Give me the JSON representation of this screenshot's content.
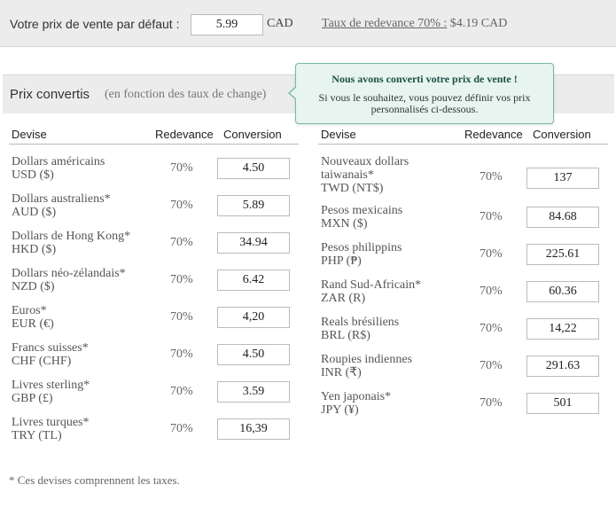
{
  "top_bar": {
    "label": "Votre prix de vente par défaut :",
    "price_value": "5.99",
    "currency": "CAD",
    "royalty_link": "Taux de redevance 70% :",
    "royalty_amount": " $4.19 CAD"
  },
  "panel": {
    "title": "Prix convertis",
    "subtitle": "(en fonction des taux de change)"
  },
  "tooltip": {
    "title": "Nous avons converti votre prix de vente !",
    "text": "Si vous le souhaitez, vous pouvez définir vos prix personnalisés ci-dessous."
  },
  "columns_header": {
    "currency": "Devise",
    "royalty": "Redevance",
    "conversion": "Conversion"
  },
  "left_rows": [
    {
      "name": "Dollars américains",
      "code": "USD ($)",
      "royalty": "70%",
      "value": "4.50"
    },
    {
      "name": "Dollars australiens*",
      "code": "AUD ($)",
      "royalty": "70%",
      "value": "5.89"
    },
    {
      "name": "Dollars de Hong Kong*",
      "code": "HKD ($)",
      "royalty": "70%",
      "value": "34.94"
    },
    {
      "name": "Dollars néo-zélandais*",
      "code": "NZD ($)",
      "royalty": "70%",
      "value": "6.42"
    },
    {
      "name": "Euros*",
      "code": "EUR (€)",
      "royalty": "70%",
      "value": "4,20"
    },
    {
      "name": "Francs suisses*",
      "code": "CHF (CHF)",
      "royalty": "70%",
      "value": "4.50"
    },
    {
      "name": "Livres sterling*",
      "code": "GBP (£)",
      "royalty": "70%",
      "value": "3.59"
    },
    {
      "name": "Livres turques*",
      "code": "TRY (TL)",
      "royalty": "70%",
      "value": "16,39"
    }
  ],
  "right_rows": [
    {
      "name": "Nouveaux dollars taiwanais*",
      "code": "TWD (NT$)",
      "royalty": "70%",
      "value": "137"
    },
    {
      "name": "Pesos mexicains",
      "code": "MXN ($)",
      "royalty": "70%",
      "value": "84.68"
    },
    {
      "name": "Pesos philippins",
      "code": "PHP (₱)",
      "royalty": "70%",
      "value": "225.61"
    },
    {
      "name": "Rand Sud-Africain*",
      "code": "ZAR (R)",
      "royalty": "70%",
      "value": "60.36"
    },
    {
      "name": "Reals brésiliens",
      "code": "BRL (R$)",
      "royalty": "70%",
      "value": "14,22"
    },
    {
      "name": "Roupies indiennes",
      "code": "INR (₹)",
      "royalty": "70%",
      "value": "291.63"
    },
    {
      "name": "Yen japonais*",
      "code": "JPY (¥)",
      "royalty": "70%",
      "value": "501"
    }
  ],
  "footnote": "* Ces devises comprennent les taxes."
}
